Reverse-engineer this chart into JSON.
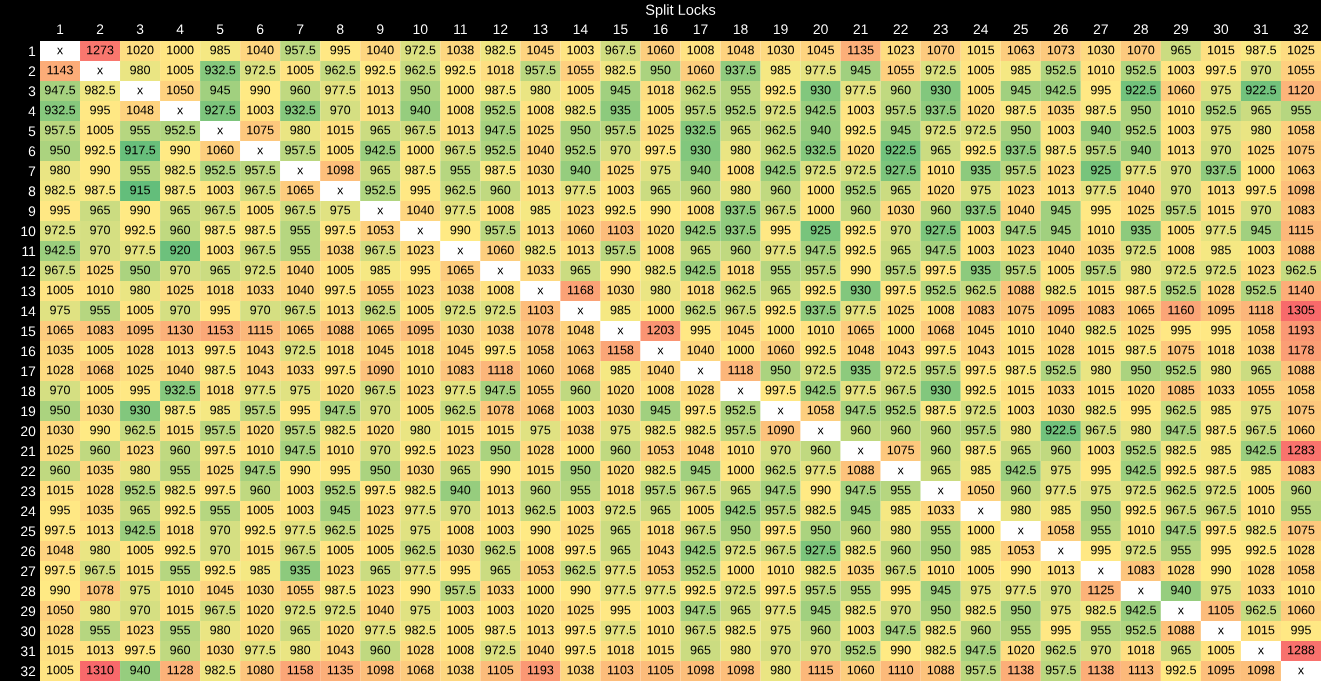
{
  "chart_data": {
    "type": "heatmap",
    "title": "Split Locks",
    "categories": [
      "1",
      "2",
      "3",
      "4",
      "5",
      "6",
      "7",
      "8",
      "9",
      "10",
      "11",
      "12",
      "13",
      "14",
      "15",
      "16",
      "17",
      "18",
      "19",
      "20",
      "21",
      "22",
      "23",
      "24",
      "25",
      "26",
      "27",
      "28",
      "29",
      "30",
      "31",
      "32"
    ],
    "y_categories": [
      "1",
      "2",
      "3",
      "4",
      "5",
      "6",
      "7",
      "8",
      "9",
      "10",
      "11",
      "12",
      "13",
      "14",
      "15",
      "16",
      "17",
      "18",
      "19",
      "20",
      "21",
      "22",
      "23",
      "24",
      "25",
      "26",
      "27",
      "28",
      "29",
      "30",
      "31",
      "32"
    ],
    "cells": [
      [
        null,
        1273,
        1020,
        1000,
        985,
        1040,
        957.5,
        995,
        1040,
        972.5,
        1038,
        982.5,
        1045,
        1003,
        967.5,
        1060,
        1008,
        1048,
        1030,
        1045,
        1135,
        1023,
        1070,
        1015,
        1063,
        1073,
        1030,
        1070,
        965,
        1015,
        987.5,
        1025
      ],
      [
        1143,
        null,
        980,
        1005,
        932.5,
        972.5,
        1005,
        962.5,
        992.5,
        962.5,
        992.5,
        1018,
        957.5,
        1055,
        982.5,
        950,
        1060,
        937.5,
        985,
        977.5,
        945,
        1055,
        972.5,
        1005,
        985,
        952.5,
        1010,
        952.5,
        1003,
        997.5,
        970,
        1055
      ],
      [
        947.5,
        982.5,
        null,
        1050,
        945,
        990,
        960,
        977.5,
        1013,
        950,
        1000,
        987.5,
        980,
        1005,
        945,
        1018,
        962.5,
        955,
        992.5,
        930,
        977.5,
        960,
        930,
        1005,
        945,
        942.5,
        995,
        922.5,
        1060,
        975,
        922.5,
        1120
      ],
      [
        932.5,
        995,
        1048,
        null,
        927.5,
        1003,
        932.5,
        970,
        1013,
        940,
        1008,
        952.5,
        1008,
        982.5,
        935,
        1005,
        957.5,
        952.5,
        972.5,
        942.5,
        1003,
        957.5,
        937.5,
        1020,
        987.5,
        1035,
        987.5,
        950,
        1010,
        952.5,
        965,
        955
      ],
      [
        957.5,
        1005,
        955,
        952.5,
        null,
        1075,
        980,
        1015,
        965,
        967.5,
        1013,
        947.5,
        1025,
        950,
        957.5,
        1025,
        932.5,
        965,
        962.5,
        940,
        992.5,
        945,
        972.5,
        972.5,
        950,
        1003,
        940,
        952.5,
        1003,
        975,
        980,
        1058
      ],
      [
        950,
        992.5,
        917.5,
        990,
        1060,
        null,
        957.5,
        1005,
        942.5,
        1000,
        967.5,
        952.5,
        1040,
        952.5,
        970,
        997.5,
        930,
        980,
        962.5,
        932.5,
        1020,
        922.5,
        965,
        992.5,
        937.5,
        987.5,
        957.5,
        940,
        1013,
        970,
        1025,
        1075
      ],
      [
        980,
        990,
        955,
        982.5,
        952.5,
        957.5,
        null,
        1098,
        965,
        987.5,
        955,
        987.5,
        1030,
        940,
        1025,
        975,
        940,
        1008,
        942.5,
        972.5,
        972.5,
        927.5,
        1010,
        935,
        957.5,
        1023,
        925,
        977.5,
        970,
        937.5,
        1000,
        1063
      ],
      [
        982.5,
        987.5,
        915,
        987.5,
        1003,
        967.5,
        1065,
        null,
        952.5,
        995,
        962.5,
        960,
        1013,
        977.5,
        1003,
        965,
        960,
        980,
        960,
        1000,
        952.5,
        965,
        1020,
        975,
        1023,
        1013,
        977.5,
        1040,
        970,
        1013,
        997.5,
        1098
      ],
      [
        995,
        965,
        990,
        965,
        967.5,
        1005,
        967.5,
        975,
        null,
        1040,
        977.5,
        1008,
        985,
        1023,
        992.5,
        990,
        1008,
        937.5,
        967.5,
        1000,
        960,
        1030,
        960,
        937.5,
        1040,
        945,
        995,
        1025,
        957.5,
        1015,
        970,
        1083
      ],
      [
        972.5,
        970,
        992.5,
        960,
        987.5,
        987.5,
        955,
        997.5,
        1053,
        null,
        990,
        957.5,
        1013,
        1060,
        1103,
        1020,
        942.5,
        937.5,
        995,
        925,
        992.5,
        970,
        927.5,
        1003,
        947.5,
        945,
        1010,
        935,
        1005,
        977.5,
        945,
        1115
      ],
      [
        942.5,
        970,
        977.5,
        920,
        1003,
        967.5,
        955,
        1038,
        967.5,
        1023,
        null,
        1060,
        982.5,
        1013,
        957.5,
        1008,
        965,
        960,
        977.5,
        947.5,
        992.5,
        965,
        947.5,
        1003,
        1023,
        1040,
        1035,
        972.5,
        1008,
        985,
        1003,
        1088
      ],
      [
        967.5,
        1025,
        950,
        970,
        965,
        972.5,
        1040,
        1005,
        985,
        995,
        1065,
        null,
        1033,
        965,
        990,
        982.5,
        942.5,
        1018,
        955,
        957.5,
        990,
        957.5,
        997.5,
        935,
        957.5,
        1005,
        957.5,
        980,
        972.5,
        972.5,
        1023,
        962.5
      ],
      [
        1005,
        1010,
        980,
        1025,
        1018,
        1033,
        1040,
        997.5,
        1055,
        1023,
        1038,
        1008,
        null,
        1168,
        1030,
        980,
        1018,
        962.5,
        965,
        992.5,
        930,
        997.5,
        952.5,
        962.5,
        1088,
        982.5,
        1015,
        987.5,
        952.5,
        1028,
        952.5,
        1140
      ],
      [
        975,
        955,
        1005,
        970,
        995,
        970,
        967.5,
        1013,
        962.5,
        1005,
        972.5,
        972.5,
        1103,
        null,
        985,
        1000,
        962.5,
        967.5,
        992.5,
        937.5,
        977.5,
        1025,
        1008,
        1083,
        1075,
        1095,
        1083,
        1065,
        1160,
        1095,
        1118,
        1305
      ],
      [
        1065,
        1083,
        1095,
        1130,
        1153,
        1115,
        1065,
        1088,
        1065,
        1095,
        1030,
        1038,
        1078,
        1048,
        null,
        1203,
        995,
        1045,
        1000,
        1010,
        1065,
        1000,
        1068,
        1045,
        1010,
        1040,
        982.5,
        1025,
        995,
        995,
        1058,
        1193
      ],
      [
        1035,
        1005,
        1028,
        1013,
        997.5,
        1043,
        972.5,
        1018,
        1045,
        1018,
        1045,
        997.5,
        1058,
        1063,
        1158,
        null,
        1040,
        1000,
        1060,
        992.5,
        1048,
        1043,
        997.5,
        1043,
        1015,
        1028,
        1015,
        987.5,
        1075,
        1018,
        1038,
        1178
      ],
      [
        1028,
        1068,
        1025,
        1040,
        987.5,
        1043,
        1033,
        997.5,
        1090,
        1010,
        1083,
        1118,
        1060,
        1068,
        985,
        1040,
        null,
        1118,
        950,
        972.5,
        935,
        972.5,
        957.5,
        997.5,
        987.5,
        952.5,
        980,
        950,
        952.5,
        980,
        965,
        1088
      ],
      [
        970,
        1005,
        995,
        932.5,
        1018,
        977.5,
        975,
        1020,
        967.5,
        1023,
        977.5,
        947.5,
        1055,
        960,
        1020,
        1008,
        1028,
        null,
        997.5,
        942.5,
        977.5,
        967.5,
        930,
        992.5,
        1015,
        1033,
        1015,
        1020,
        1085,
        1033,
        1055,
        1058
      ],
      [
        950,
        1030,
        930,
        987.5,
        985,
        957.5,
        995,
        947.5,
        970,
        1005,
        962.5,
        1078,
        1068,
        1003,
        1030,
        945,
        997.5,
        952.5,
        null,
        1058,
        947.5,
        952.5,
        987.5,
        972.5,
        1003,
        1030,
        982.5,
        995,
        962.5,
        985,
        975,
        1075
      ],
      [
        1030,
        990,
        962.5,
        1015,
        957.5,
        1020,
        957.5,
        982.5,
        1020,
        980,
        1015,
        1015,
        975,
        1038,
        975,
        982.5,
        982.5,
        957.5,
        1090,
        null,
        960,
        960,
        960,
        957.5,
        980,
        922.5,
        967.5,
        980,
        947.5,
        987.5,
        967.5,
        1060
      ],
      [
        1025,
        960,
        1023,
        960,
        997.5,
        1010,
        947.5,
        1010,
        970,
        992.5,
        1023,
        950,
        1028,
        1000,
        960,
        1053,
        1048,
        1010,
        970,
        960,
        null,
        1075,
        960,
        987.5,
        965,
        960,
        1003,
        952.5,
        982.5,
        985,
        942.5,
        1283
      ],
      [
        960,
        1035,
        980,
        955,
        1025,
        947.5,
        990,
        995,
        950,
        1030,
        965,
        990,
        1015,
        950,
        1020,
        982.5,
        945,
        1000,
        962.5,
        977.5,
        1088,
        null,
        965,
        985,
        942.5,
        975,
        995,
        942.5,
        992.5,
        987.5,
        985,
        1083
      ],
      [
        1015,
        1028,
        952.5,
        982.5,
        997.5,
        960,
        1003,
        952.5,
        997.5,
        982.5,
        940,
        1013,
        960,
        955,
        1018,
        957.5,
        967.5,
        965,
        947.5,
        990,
        947.5,
        955,
        null,
        1050,
        960,
        977.5,
        975,
        972.5,
        962.5,
        972.5,
        1005,
        960
      ],
      [
        995,
        1035,
        965,
        992.5,
        955,
        1005,
        1003,
        945,
        1023,
        977.5,
        970,
        1013,
        962.5,
        1003,
        972.5,
        965,
        1005,
        942.5,
        957.5,
        982.5,
        945,
        985,
        1033,
        null,
        980,
        985,
        950,
        992.5,
        967.5,
        967.5,
        1010,
        955
      ],
      [
        997.5,
        1013,
        942.5,
        1018,
        970,
        992.5,
        977.5,
        962.5,
        1025,
        975,
        1008,
        1003,
        990,
        1025,
        965,
        1018,
        967.5,
        950,
        997.5,
        950,
        960,
        980,
        955,
        1000,
        null,
        1058,
        955,
        1010,
        947.5,
        997.5,
        982.5,
        1075
      ],
      [
        1048,
        980,
        1005,
        992.5,
        970,
        1015,
        967.5,
        1005,
        1005,
        962.5,
        1030,
        962.5,
        1008,
        997.5,
        965,
        1043,
        942.5,
        972.5,
        967.5,
        927.5,
        982.5,
        960,
        950,
        985,
        1053,
        null,
        995,
        972.5,
        955,
        995,
        992.5,
        1028
      ],
      [
        997.5,
        967.5,
        1015,
        955,
        992.5,
        985,
        935,
        1023,
        965,
        977.5,
        995,
        965,
        1053,
        962.5,
        977.5,
        1053,
        952.5,
        1000,
        1010,
        982.5,
        1035,
        967.5,
        1010,
        1005,
        990,
        1013,
        null,
        1083,
        1028,
        990,
        1028,
        1058
      ],
      [
        990,
        1078,
        975,
        1010,
        1045,
        1030,
        1055,
        987.5,
        1023,
        990,
        957.5,
        1033,
        1000,
        990,
        977.5,
        977.5,
        992.5,
        972.5,
        997.5,
        957.5,
        955,
        995,
        945,
        975,
        977.5,
        970,
        1125,
        null,
        940,
        975,
        1033,
        1010
      ],
      [
        1050,
        980,
        970,
        1015,
        967.5,
        1020,
        972.5,
        972.5,
        1040,
        975,
        1003,
        1003,
        1020,
        1025,
        995,
        1003,
        947.5,
        965,
        977.5,
        945,
        982.5,
        970,
        950,
        982.5,
        950,
        975,
        982.5,
        942.5,
        null,
        1105,
        962.5,
        1060
      ],
      [
        1028,
        955,
        1023,
        955,
        980,
        1020,
        965,
        1020,
        977.5,
        982.5,
        1005,
        987.5,
        1013,
        997.5,
        977.5,
        1010,
        967.5,
        982.5,
        975,
        960,
        1003,
        947.5,
        982.5,
        960,
        955,
        995,
        955,
        952.5,
        1088,
        null,
        1015,
        995
      ],
      [
        1015,
        1013,
        997.5,
        960,
        1030,
        977.5,
        980,
        1043,
        960,
        1028,
        1008,
        972.5,
        1040,
        997.5,
        1018,
        1015,
        965,
        980,
        970,
        970,
        952.5,
        990,
        982.5,
        947.5,
        1020,
        962.5,
        970,
        1018,
        965,
        1005,
        null,
        1288
      ],
      [
        1005,
        1310,
        940,
        1128,
        982.5,
        1080,
        1158,
        1135,
        1098,
        1068,
        1038,
        1105,
        1193,
        1038,
        1103,
        1105,
        1098,
        1098,
        980,
        1115,
        1060,
        1110,
        1088,
        957.5,
        1138,
        957.5,
        1138,
        1113,
        992.5,
        1095,
        1098,
        null
      ]
    ],
    "cell_labels": [
      [
        "x",
        "1273",
        "1020",
        "1000",
        "985",
        "1040",
        "957.5",
        "995",
        "1040",
        "972.5",
        "1038",
        "982.5",
        "1045",
        "1003",
        "967.5",
        "1060",
        "1008",
        "1048",
        "1030",
        "1045",
        "1135",
        "1023",
        "1070",
        "1015",
        "1063",
        "1073",
        "1030",
        "1070",
        "965",
        "1015",
        "987.5",
        "1025"
      ],
      [
        "1143",
        "x",
        "980",
        "1005",
        "932.5",
        "972.5",
        "1005",
        "962.5",
        "992.5",
        "962.5",
        "992.5",
        "1018",
        "957.5",
        "1055",
        "982.5",
        "950",
        "1060",
        "937.5",
        "985",
        "977.5",
        "945",
        "1055",
        "972.5",
        "1005",
        "985",
        "952.5",
        "1010",
        "952.5",
        "1003",
        "997.5",
        "970",
        "1055"
      ],
      [
        "947.5",
        "982.5",
        "x",
        "1050",
        "945",
        "990",
        "960",
        "977.5",
        "1013",
        "950",
        "1000",
        "987.5",
        "980",
        "1005",
        "945",
        "1018",
        "962.5",
        "955",
        "992.5",
        "930",
        "977.5",
        "960",
        "930",
        "1005",
        "945",
        "942.5",
        "995",
        "922.5",
        "1060",
        "975",
        "922.5",
        "1120"
      ],
      [
        "932.5",
        "995",
        "1048",
        "x",
        "927.5",
        "1003",
        "932.5",
        "970",
        "1013",
        "940",
        "1008",
        "952.5",
        "1008",
        "982.5",
        "935",
        "1005",
        "957.5",
        "952.5",
        "972.5",
        "942.5",
        "1003",
        "957.5",
        "937.5",
        "1020",
        "987.5",
        "1035",
        "987.5",
        "950",
        "1010",
        "952.5",
        "965",
        "955"
      ],
      [
        "957.5",
        "1005",
        "955",
        "952.5",
        "x",
        "1075",
        "980",
        "1015",
        "965",
        "967.5",
        "1013",
        "947.5",
        "1025",
        "950",
        "957.5",
        "1025",
        "932.5",
        "965",
        "962.5",
        "940",
        "992.5",
        "945",
        "972.5",
        "972.5",
        "950",
        "1003",
        "940",
        "952.5",
        "1003",
        "975",
        "980",
        "1058"
      ],
      [
        "950",
        "992.5",
        "917.5",
        "990",
        "1060",
        "x",
        "957.5",
        "1005",
        "942.5",
        "1000",
        "967.5",
        "952.5",
        "1040",
        "952.5",
        "970",
        "997.5",
        "930",
        "980",
        "962.5",
        "932.5",
        "1020",
        "922.5",
        "965",
        "992.5",
        "937.5",
        "987.5",
        "957.5",
        "940",
        "1013",
        "970",
        "1025",
        "1075"
      ],
      [
        "980",
        "990",
        "955",
        "982.5",
        "952.5",
        "957.5",
        "x",
        "1098",
        "965",
        "987.5",
        "955",
        "987.5",
        "1030",
        "940",
        "1025",
        "975",
        "940",
        "1008",
        "942.5",
        "972.5",
        "972.5",
        "927.5",
        "1010",
        "935",
        "957.5",
        "1023",
        "925",
        "977.5",
        "970",
        "937.5",
        "1000",
        "1063"
      ],
      [
        "982.5",
        "987.5",
        "915",
        "987.5",
        "1003",
        "967.5",
        "1065",
        "x",
        "952.5",
        "995",
        "962.5",
        "960",
        "1013",
        "977.5",
        "1003",
        "965",
        "960",
        "980",
        "960",
        "1000",
        "952.5",
        "965",
        "1020",
        "975",
        "1023",
        "1013",
        "977.5",
        "1040",
        "970",
        "1013",
        "997.5",
        "1098"
      ],
      [
        "995",
        "965",
        "990",
        "965",
        "967.5",
        "1005",
        "967.5",
        "975",
        "x",
        "1040",
        "977.5",
        "1008",
        "985",
        "1023",
        "992.5",
        "990",
        "1008",
        "937.5",
        "967.5",
        "1000",
        "960",
        "1030",
        "960",
        "937.5",
        "1040",
        "945",
        "995",
        "1025",
        "957.5",
        "1015",
        "970",
        "1083"
      ],
      [
        "972.5",
        "970",
        "992.5",
        "960",
        "987.5",
        "987.5",
        "955",
        "997.5",
        "1053",
        "x",
        "990",
        "957.5",
        "1013",
        "1060",
        "1103",
        "1020",
        "942.5",
        "937.5",
        "995",
        "925",
        "992.5",
        "970",
        "927.5",
        "1003",
        "947.5",
        "945",
        "1010",
        "935",
        "1005",
        "977.5",
        "945",
        "1115"
      ],
      [
        "942.5",
        "970",
        "977.5",
        "920",
        "1003",
        "967.5",
        "955",
        "1038",
        "967.5",
        "1023",
        "x",
        "1060",
        "982.5",
        "1013",
        "957.5",
        "1008",
        "965",
        "960",
        "977.5",
        "947.5",
        "992.5",
        "965",
        "947.5",
        "1003",
        "1023",
        "1040",
        "1035",
        "972.5",
        "1008",
        "985",
        "1003",
        "1088"
      ],
      [
        "967.5",
        "1025",
        "950",
        "970",
        "965",
        "972.5",
        "1040",
        "1005",
        "985",
        "995",
        "1065",
        "x",
        "1033",
        "965",
        "990",
        "982.5",
        "942.5",
        "1018",
        "955",
        "957.5",
        "990",
        "957.5",
        "997.5",
        "935",
        "957.5",
        "1005",
        "957.5",
        "980",
        "972.5",
        "972.5",
        "1023",
        "962.5"
      ],
      [
        "1005",
        "1010",
        "980",
        "1025",
        "1018",
        "1033",
        "1040",
        "997.5",
        "1055",
        "1023",
        "1038",
        "1008",
        "x",
        "1168",
        "1030",
        "980",
        "1018",
        "962.5",
        "965",
        "992.5",
        "930",
        "997.5",
        "952.5",
        "962.5",
        "1088",
        "982.5",
        "1015",
        "987.5",
        "952.5",
        "1028",
        "952.5",
        "1140"
      ],
      [
        "975",
        "955",
        "1005",
        "970",
        "995",
        "970",
        "967.5",
        "1013",
        "962.5",
        "1005",
        "972.5",
        "972.5",
        "1103",
        "x",
        "985",
        "1000",
        "962.5",
        "967.5",
        "992.5",
        "937.5",
        "977.5",
        "1025",
        "1008",
        "1083",
        "1075",
        "1095",
        "1083",
        "1065",
        "1160",
        "1095",
        "1118",
        "1305"
      ],
      [
        "1065",
        "1083",
        "1095",
        "1130",
        "1153",
        "1115",
        "1065",
        "1088",
        "1065",
        "1095",
        "1030",
        "1038",
        "1078",
        "1048",
        "x",
        "1203",
        "995",
        "1045",
        "1000",
        "1010",
        "1065",
        "1000",
        "1068",
        "1045",
        "1010",
        "1040",
        "982.5",
        "1025",
        "995",
        "995",
        "1058",
        "1193"
      ],
      [
        "1035",
        "1005",
        "1028",
        "1013",
        "997.5",
        "1043",
        "972.5",
        "1018",
        "1045",
        "1018",
        "1045",
        "997.5",
        "1058",
        "1063",
        "1158",
        "x",
        "1040",
        "1000",
        "1060",
        "992.5",
        "1048",
        "1043",
        "997.5",
        "1043",
        "1015",
        "1028",
        "1015",
        "987.5",
        "1075",
        "1018",
        "1038",
        "1178"
      ],
      [
        "1028",
        "1068",
        "1025",
        "1040",
        "987.5",
        "1043",
        "1033",
        "997.5",
        "1090",
        "1010",
        "1083",
        "1118",
        "1060",
        "1068",
        "985",
        "1040",
        "x",
        "1118",
        "950",
        "972.5",
        "935",
        "972.5",
        "957.5",
        "997.5",
        "987.5",
        "952.5",
        "980",
        "950",
        "952.5",
        "980",
        "965",
        "1088"
      ],
      [
        "970",
        "1005",
        "995",
        "932.5",
        "1018",
        "977.5",
        "975",
        "1020",
        "967.5",
        "1023",
        "977.5",
        "947.5",
        "1055",
        "960",
        "1020",
        "1008",
        "1028",
        "x",
        "997.5",
        "942.5",
        "977.5",
        "967.5",
        "930",
        "992.5",
        "1015",
        "1033",
        "1015",
        "1020",
        "1085",
        "1033",
        "1055",
        "1058"
      ],
      [
        "950",
        "1030",
        "930",
        "987.5",
        "985",
        "957.5",
        "995",
        "947.5",
        "970",
        "1005",
        "962.5",
        "1078",
        "1068",
        "1003",
        "1030",
        "945",
        "997.5",
        "952.5",
        "x",
        "1058",
        "947.5",
        "952.5",
        "987.5",
        "972.5",
        "1003",
        "1030",
        "982.5",
        "995",
        "962.5",
        "985",
        "975",
        "1075"
      ],
      [
        "1030",
        "990",
        "962.5",
        "1015",
        "957.5",
        "1020",
        "957.5",
        "982.5",
        "1020",
        "980",
        "1015",
        "1015",
        "975",
        "1038",
        "975",
        "982.5",
        "982.5",
        "957.5",
        "1090",
        "x",
        "960",
        "960",
        "960",
        "957.5",
        "980",
        "922.5",
        "967.5",
        "980",
        "947.5",
        "987.5",
        "967.5",
        "1060"
      ],
      [
        "1025",
        "960",
        "1023",
        "960",
        "997.5",
        "1010",
        "947.5",
        "1010",
        "970",
        "992.5",
        "1023",
        "950",
        "1028",
        "1000",
        "960",
        "1053",
        "1048",
        "1010",
        "970",
        "960",
        "x",
        "1075",
        "960",
        "987.5",
        "965",
        "960",
        "1003",
        "952.5",
        "982.5",
        "985",
        "942.5",
        "1283"
      ],
      [
        "960",
        "1035",
        "980",
        "955",
        "1025",
        "947.5",
        "990",
        "995",
        "950",
        "1030",
        "965",
        "990",
        "1015",
        "950",
        "1020",
        "982.5",
        "945",
        "1000",
        "962.5",
        "977.5",
        "1088",
        "x",
        "965",
        "985",
        "942.5",
        "975",
        "995",
        "942.5",
        "992.5",
        "987.5",
        "985",
        "1083"
      ],
      [
        "1015",
        "1028",
        "952.5",
        "982.5",
        "997.5",
        "960",
        "1003",
        "952.5",
        "997.5",
        "982.5",
        "940",
        "1013",
        "960",
        "955",
        "1018",
        "957.5",
        "967.5",
        "965",
        "947.5",
        "990",
        "947.5",
        "955",
        "x",
        "1050",
        "960",
        "977.5",
        "975",
        "972.5",
        "962.5",
        "972.5",
        "1005",
        "960"
      ],
      [
        "995",
        "1035",
        "965",
        "992.5",
        "955",
        "1005",
        "1003",
        "945",
        "1023",
        "977.5",
        "970",
        "1013",
        "962.5",
        "1003",
        "972.5",
        "965",
        "1005",
        "942.5",
        "957.5",
        "982.5",
        "945",
        "985",
        "1033",
        "x",
        "980",
        "985",
        "950",
        "992.5",
        "967.5",
        "967.5",
        "1010",
        "955"
      ],
      [
        "997.5",
        "1013",
        "942.5",
        "1018",
        "970",
        "992.5",
        "977.5",
        "962.5",
        "1025",
        "975",
        "1008",
        "1003",
        "990",
        "1025",
        "965",
        "1018",
        "967.5",
        "950",
        "997.5",
        "950",
        "960",
        "980",
        "955",
        "1000",
        "x",
        "1058",
        "955",
        "1010",
        "947.5",
        "997.5",
        "982.5",
        "1075"
      ],
      [
        "1048",
        "980",
        "1005",
        "992.5",
        "970",
        "1015",
        "967.5",
        "1005",
        "1005",
        "962.5",
        "1030",
        "962.5",
        "1008",
        "997.5",
        "965",
        "1043",
        "942.5",
        "972.5",
        "967.5",
        "927.5",
        "982.5",
        "960",
        "950",
        "985",
        "1053",
        "x",
        "995",
        "972.5",
        "955",
        "995",
        "992.5",
        "1028"
      ],
      [
        "997.5",
        "967.5",
        "1015",
        "955",
        "992.5",
        "985",
        "935",
        "1023",
        "965",
        "977.5",
        "995",
        "965",
        "1053",
        "962.5",
        "977.5",
        "1053",
        "952.5",
        "1000",
        "1010",
        "982.5",
        "1035",
        "967.5",
        "1010",
        "1005",
        "990",
        "1013",
        "x",
        "1083",
        "1028",
        "990",
        "1028",
        "1058"
      ],
      [
        "990",
        "1078",
        "975",
        "1010",
        "1045",
        "1030",
        "1055",
        "987.5",
        "1023",
        "990",
        "957.5",
        "1033",
        "1000",
        "990",
        "977.5",
        "977.5",
        "992.5",
        "972.5",
        "997.5",
        "957.5",
        "955",
        "995",
        "945",
        "975",
        "977.5",
        "970",
        "1125",
        "x",
        "940",
        "975",
        "1033",
        "1010"
      ],
      [
        "1050",
        "980",
        "970",
        "1015",
        "967.5",
        "1020",
        "972.5",
        "972.5",
        "1040",
        "975",
        "1003",
        "1003",
        "1020",
        "1025",
        "995",
        "1003",
        "947.5",
        "965",
        "977.5",
        "945",
        "982.5",
        "970",
        "950",
        "982.5",
        "950",
        "975",
        "982.5",
        "942.5",
        "x",
        "1105",
        "962.5",
        "1060"
      ],
      [
        "1028",
        "955",
        "1023",
        "955",
        "980",
        "1020",
        "965",
        "1020",
        "977.5",
        "982.5",
        "1005",
        "987.5",
        "1013",
        "997.5",
        "977.5",
        "1010",
        "967.5",
        "982.5",
        "975",
        "960",
        "1003",
        "947.5",
        "982.5",
        "960",
        "955",
        "995",
        "955",
        "952.5",
        "1088",
        "x",
        "1015",
        "995"
      ],
      [
        "1015",
        "1013",
        "997.5",
        "960",
        "1030",
        "977.5",
        "980",
        "1043",
        "960",
        "1028",
        "1008",
        "972.5",
        "1040",
        "997.5",
        "1018",
        "1015",
        "965",
        "980",
        "970",
        "970",
        "952.5",
        "990",
        "982.5",
        "947.5",
        "1020",
        "962.5",
        "970",
        "1018",
        "965",
        "1005",
        "x",
        "1288"
      ],
      [
        "1005",
        "1310",
        "940",
        "1128",
        "982.5",
        "1080",
        "1158",
        "1135",
        "1098",
        "1068",
        "1038",
        "1105",
        "1193",
        "1038",
        "1103",
        "1105",
        "1098",
        "1098",
        "980",
        "1115",
        "1060",
        "1110",
        "1088",
        "957.5",
        "1138",
        "957.5",
        "1138",
        "1113",
        "992.5",
        "1095",
        "1098",
        "x"
      ]
    ]
  }
}
